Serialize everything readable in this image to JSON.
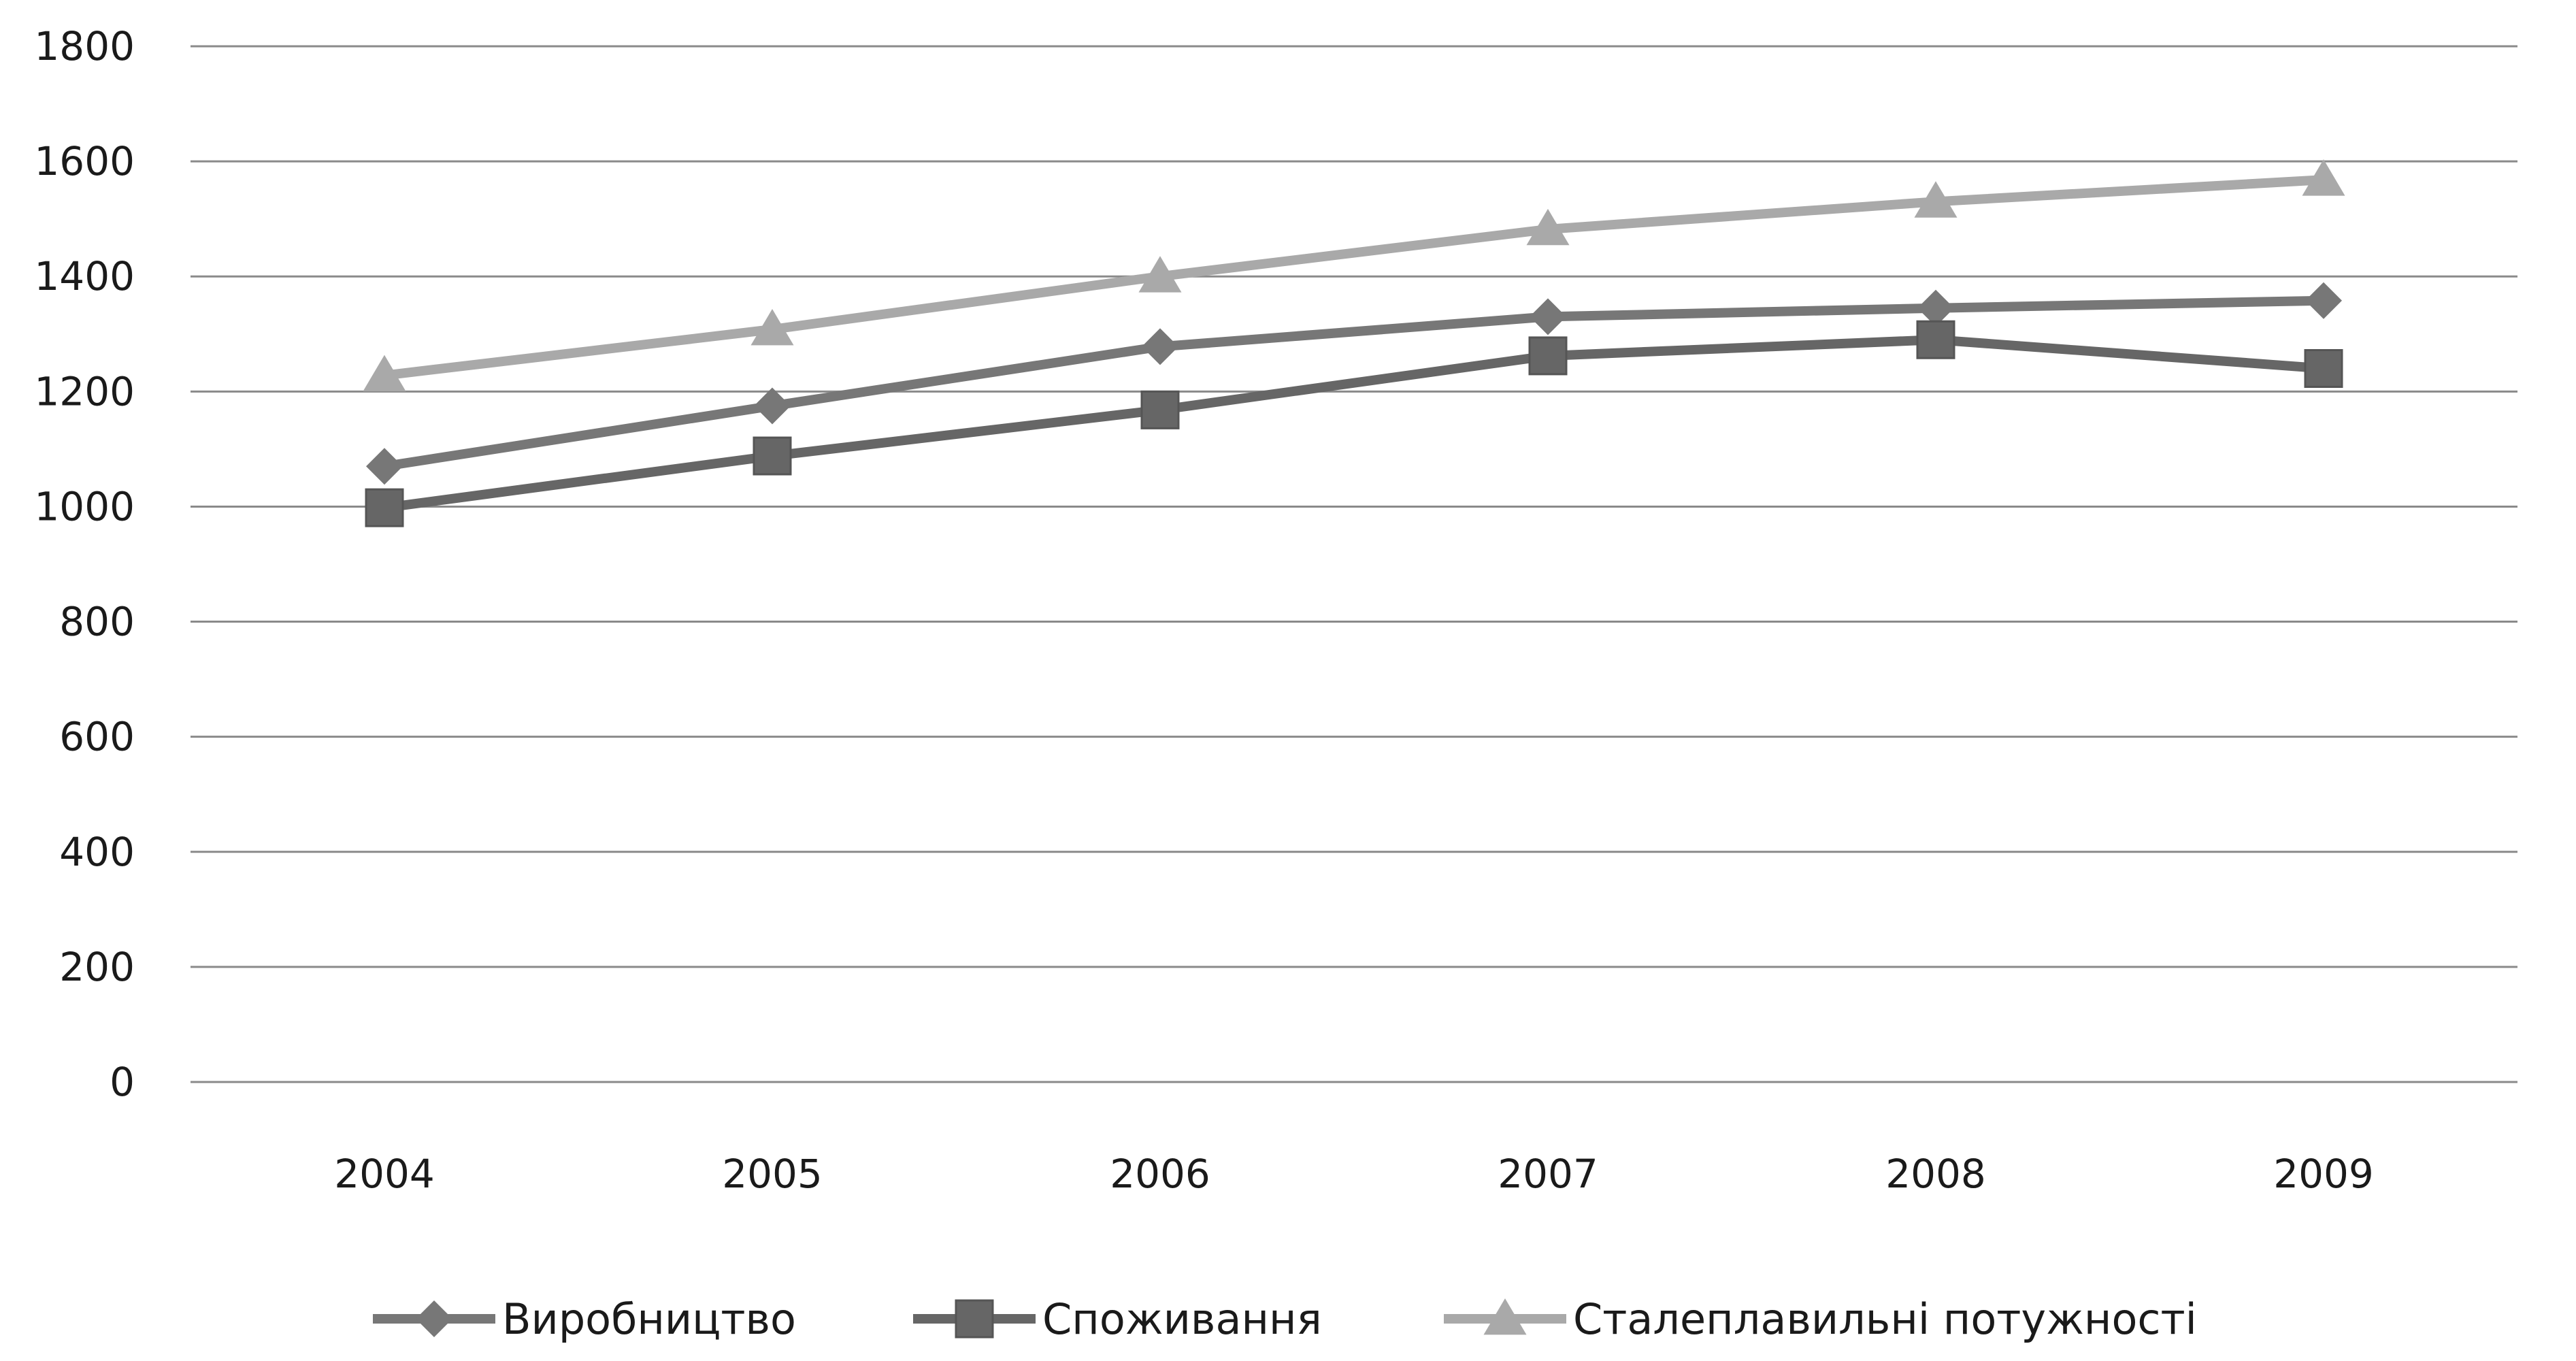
{
  "chart_data": {
    "type": "line",
    "title": "",
    "xlabel": "",
    "ylabel": "",
    "categories": [
      "2004",
      "2005",
      "2006",
      "2007",
      "2008",
      "2009"
    ],
    "ylim": [
      0,
      1800
    ],
    "yticks": [
      0,
      200,
      400,
      600,
      800,
      1000,
      1200,
      1400,
      1600,
      1800
    ],
    "grid": true,
    "legend_position": "bottom",
    "series": [
      {
        "name": "Виробництво",
        "values": [
          1070,
          1175,
          1278,
          1330,
          1345,
          1358
        ],
        "marker": "diamond",
        "color": "#777777"
      },
      {
        "name": "Споживання",
        "values": [
          998,
          1088,
          1168,
          1262,
          1290,
          1240
        ],
        "marker": "square",
        "color": "#666666"
      },
      {
        "name": "Сталеплавильні потужності",
        "values": [
          1228,
          1308,
          1400,
          1482,
          1530,
          1568
        ],
        "marker": "triangle",
        "color": "#a9a9a9"
      }
    ]
  }
}
